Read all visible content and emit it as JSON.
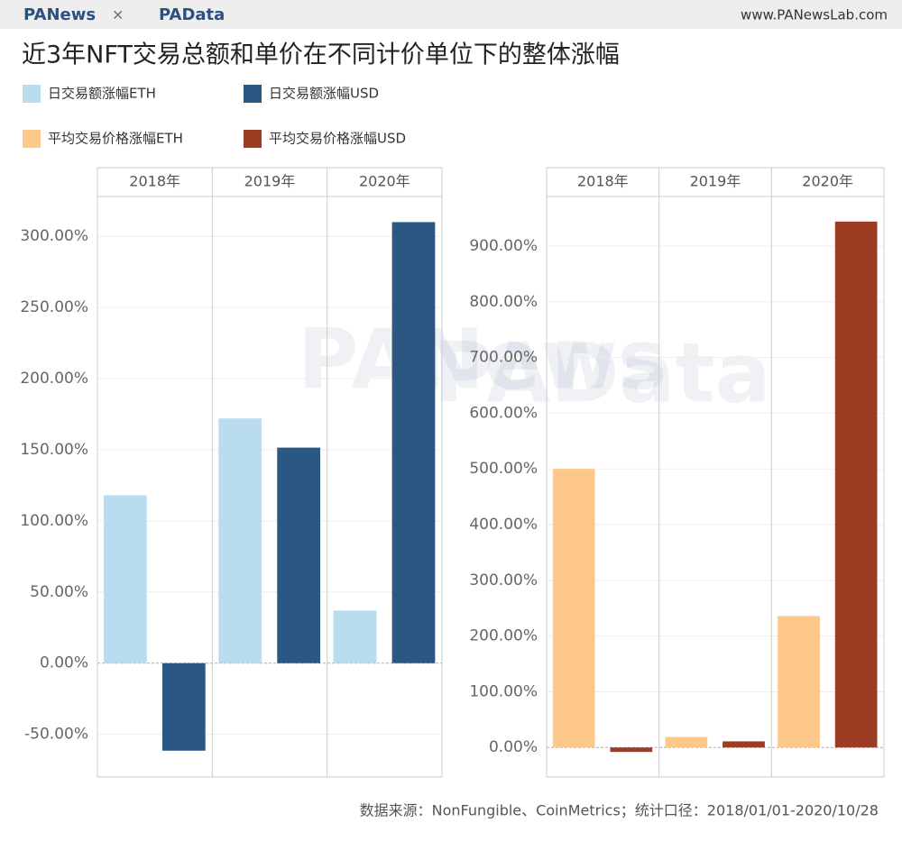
{
  "header": {
    "brand_left": "PANews",
    "separator": "×",
    "brand_right": "PAData",
    "site": "www.PANewsLab.com"
  },
  "title": "近3年NFT交易总额和单价在不同计价单位下的整体涨幅",
  "watermarks": [
    "PANews",
    "PAData"
  ],
  "source": "数据来源：NonFungible、CoinMetrics；统计口径：2018/01/01-2020/10/28",
  "chart_data": [
    {
      "type": "bar",
      "categories": [
        "2018年",
        "2019年",
        "2020年"
      ],
      "series": [
        {
          "name": "日交易额涨幅ETH",
          "color": "#b9dcef",
          "values": [
            118,
            172,
            37
          ]
        },
        {
          "name": "日交易额涨幅USD",
          "color": "#2b5783",
          "values": [
            -61.5,
            151.5,
            310
          ]
        }
      ],
      "ylim": [
        -80,
        328
      ],
      "yticks": [
        {
          "value": -50,
          "label": "-50.00%"
        },
        {
          "value": 0,
          "label": "0.00%"
        },
        {
          "value": 50,
          "label": "50.00%"
        },
        {
          "value": 100,
          "label": "100.00%"
        },
        {
          "value": 150,
          "label": "150.00%"
        },
        {
          "value": 200,
          "label": "200.00%"
        },
        {
          "value": 250,
          "label": "250.00%"
        },
        {
          "value": 300,
          "label": "300.00%"
        }
      ],
      "grid": true
    },
    {
      "type": "bar",
      "categories": [
        "2018年",
        "2019年",
        "2020年"
      ],
      "series": [
        {
          "name": "平均交易价格涨幅ETH",
          "color": "#fdc88a",
          "values": [
            500,
            19,
            236
          ]
        },
        {
          "name": "平均交易价格涨幅USD",
          "color": "#9c3c22",
          "values": [
            -8,
            11,
            944
          ]
        }
      ],
      "ylim": [
        -53,
        989
      ],
      "yticks": [
        {
          "value": 0,
          "label": "0.00%"
        },
        {
          "value": 100,
          "label": "100.00%"
        },
        {
          "value": 200,
          "label": "200.00%"
        },
        {
          "value": 300,
          "label": "300.00%"
        },
        {
          "value": 400,
          "label": "400.00%"
        },
        {
          "value": 500,
          "label": "500.00%"
        },
        {
          "value": 600,
          "label": "600.00%"
        },
        {
          "value": 700,
          "label": "700.00%"
        },
        {
          "value": 800,
          "label": "800.00%"
        },
        {
          "value": 900,
          "label": "900.00%"
        }
      ],
      "grid": true
    }
  ]
}
